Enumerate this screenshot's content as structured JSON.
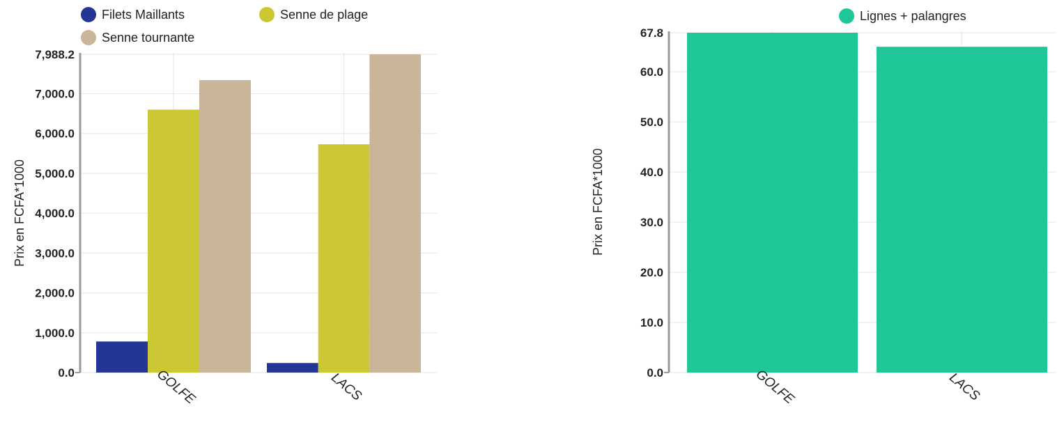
{
  "chart_data": [
    {
      "type": "bar",
      "categories": [
        "GOLFE",
        "LACS"
      ],
      "series": [
        {
          "name": "Filets Maillants",
          "color": "#233595",
          "values": [
            780,
            240
          ]
        },
        {
          "name": "Senne de plage",
          "color": "#cbc833",
          "values": [
            6600,
            5730
          ]
        },
        {
          "name": "Senne tournante",
          "color": "#c9b598",
          "values": [
            7340,
            7988.2
          ]
        }
      ],
      "xlabel": "",
      "ylabel": "Prix en FCFA*1000",
      "ylim": [
        0,
        7988.2
      ],
      "yticks": [
        0,
        1000,
        2000,
        3000,
        4000,
        5000,
        6000,
        7000,
        7988.2
      ],
      "ytick_labels": [
        "0.0",
        "1,000.0",
        "2,000.0",
        "3,000.0",
        "4,000.0",
        "5,000.0",
        "6,000.0",
        "7,000.0",
        "7,988.2"
      ],
      "grid": true,
      "legend_position": "top-left"
    },
    {
      "type": "bar",
      "categories": [
        "GOLFE",
        "LACS"
      ],
      "series": [
        {
          "name": "Lignes + palangres",
          "color": "#1fc798",
          "values": [
            67.8,
            65
          ]
        }
      ],
      "xlabel": "",
      "ylabel": "Prix en FCFA*1000",
      "ylim": [
        0,
        67.8
      ],
      "yticks": [
        0,
        10,
        20,
        30,
        40,
        50,
        60,
        67.8
      ],
      "ytick_labels": [
        "0.0",
        "10.0",
        "20.0",
        "30.0",
        "40.0",
        "50.0",
        "60.0",
        "67.8"
      ],
      "grid": true,
      "legend_position": "top-right"
    }
  ]
}
